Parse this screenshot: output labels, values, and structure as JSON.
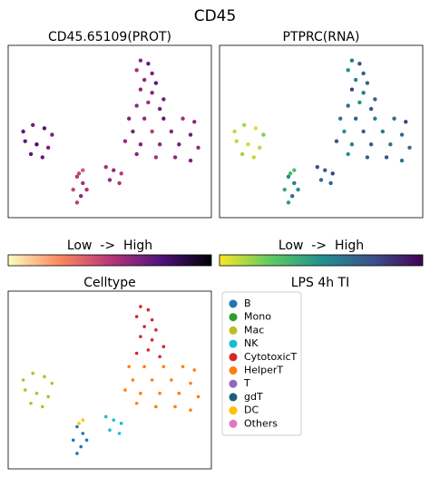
{
  "title": "CD45",
  "chart_data": [
    {
      "type": "scatter",
      "title": "CD45.65109(PROT)",
      "colormap": "magma_r",
      "colorbar_label": "Low  ->  High",
      "clim": [
        0,
        1
      ],
      "xlim": [
        0,
        100
      ],
      "ylim": [
        0,
        100
      ],
      "x": [
        66,
        70,
        64,
        72,
        68,
        74,
        66,
        72,
        78,
        70,
        64,
        76,
        60,
        68,
        78,
        88,
        94,
        62,
        72,
        82,
        92,
        58,
        66,
        76,
        86,
        96,
        64,
        74,
        84,
        92,
        5,
        10,
        16,
        20,
        6,
        12,
        18,
        9,
        15,
        33,
        36,
        31,
        35,
        38,
        33,
        48,
        52,
        56,
        50,
        55,
        36,
        34
      ],
      "y": [
        94,
        92,
        88,
        86,
        82,
        80,
        76,
        74,
        70,
        68,
        66,
        64,
        58,
        58,
        58,
        58,
        56,
        50,
        50,
        50,
        48,
        44,
        42,
        42,
        42,
        40,
        36,
        34,
        34,
        32,
        50,
        54,
        52,
        48,
        44,
        42,
        40,
        36,
        34,
        22,
        18,
        14,
        10,
        14,
        6,
        28,
        26,
        24,
        20,
        18,
        26,
        24
      ],
      "values": [
        0.6,
        0.7,
        0.55,
        0.65,
        0.6,
        0.72,
        0.58,
        0.62,
        0.68,
        0.55,
        0.6,
        0.66,
        0.62,
        0.58,
        0.7,
        0.55,
        0.6,
        0.65,
        0.5,
        0.62,
        0.68,
        0.57,
        0.63,
        0.6,
        0.66,
        0.58,
        0.62,
        0.55,
        0.6,
        0.64,
        0.72,
        0.68,
        0.75,
        0.65,
        0.7,
        0.78,
        0.66,
        0.72,
        0.7,
        0.5,
        0.55,
        0.45,
        0.6,
        0.52,
        0.48,
        0.55,
        0.58,
        0.5,
        0.6,
        0.52,
        0.4,
        0.45
      ]
    },
    {
      "type": "scatter",
      "title": "PTPRC(RNA)",
      "colormap": "viridis_r",
      "colorbar_label": "Low  ->  High",
      "clim": [
        0,
        1
      ],
      "xlim": [
        0,
        100
      ],
      "ylim": [
        0,
        100
      ],
      "x": [
        66,
        70,
        64,
        72,
        68,
        74,
        66,
        72,
        78,
        70,
        64,
        76,
        60,
        68,
        78,
        88,
        94,
        62,
        72,
        82,
        92,
        58,
        66,
        76,
        86,
        96,
        64,
        74,
        84,
        92,
        5,
        10,
        16,
        20,
        6,
        12,
        18,
        9,
        15,
        33,
        36,
        31,
        35,
        38,
        33,
        48,
        52,
        56,
        50,
        55,
        36,
        34
      ],
      "y": [
        94,
        92,
        88,
        86,
        82,
        80,
        76,
        74,
        70,
        68,
        66,
        64,
        58,
        58,
        58,
        58,
        56,
        50,
        50,
        50,
        48,
        44,
        42,
        42,
        42,
        40,
        36,
        34,
        34,
        32,
        50,
        54,
        52,
        48,
        44,
        42,
        40,
        36,
        34,
        22,
        18,
        14,
        10,
        14,
        6,
        28,
        26,
        24,
        20,
        18,
        26,
        24
      ],
      "values": [
        0.6,
        0.75,
        0.5,
        0.7,
        0.55,
        0.65,
        0.8,
        0.6,
        0.7,
        0.5,
        0.65,
        0.75,
        0.6,
        0.7,
        0.55,
        0.65,
        0.8,
        0.5,
        0.7,
        0.6,
        0.65,
        0.75,
        0.55,
        0.7,
        0.6,
        0.65,
        0.5,
        0.7,
        0.75,
        0.6,
        0.1,
        0.15,
        0.05,
        0.2,
        0.1,
        0.08,
        0.12,
        0.15,
        0.1,
        0.55,
        0.6,
        0.4,
        0.65,
        0.5,
        0.45,
        0.75,
        0.7,
        0.8,
        0.65,
        0.7,
        0.3,
        0.35
      ]
    },
    {
      "type": "scatter",
      "title": "Celltype",
      "legend_title": "LPS 4h TI",
      "legend": "outside right",
      "xlim": [
        0,
        100
      ],
      "ylim": [
        0,
        100
      ],
      "series": [
        {
          "name": "B",
          "color": "#1f77b4",
          "x": [
            33,
            36,
            31,
            35,
            38,
            33
          ],
          "y": [
            22,
            18,
            14,
            10,
            14,
            6
          ]
        },
        {
          "name": "Mono",
          "color": "#2ca02c",
          "x": [],
          "y": []
        },
        {
          "name": "Mac",
          "color": "#bcbd22",
          "x": [
            5,
            10,
            16,
            20,
            6,
            12,
            18,
            9,
            15
          ],
          "y": [
            50,
            54,
            52,
            48,
            44,
            42,
            40,
            36,
            34
          ]
        },
        {
          "name": "NK",
          "color": "#17becf",
          "x": [
            48,
            52,
            56,
            50,
            55
          ],
          "y": [
            28,
            26,
            24,
            20,
            18
          ]
        },
        {
          "name": "CytotoxicT",
          "color": "#d62728",
          "x": [
            66,
            70,
            64,
            72,
            68,
            74,
            66,
            72,
            78,
            70,
            64,
            76
          ],
          "y": [
            94,
            92,
            88,
            86,
            82,
            80,
            76,
            74,
            70,
            68,
            66,
            64
          ]
        },
        {
          "name": "HelperT",
          "color": "#ff7f0e",
          "x": [
            60,
            68,
            78,
            88,
            94,
            62,
            72,
            82,
            92,
            58,
            66,
            76,
            86,
            96,
            64,
            74,
            84,
            92
          ],
          "y": [
            58,
            58,
            58,
            58,
            56,
            50,
            50,
            50,
            48,
            44,
            42,
            42,
            42,
            40,
            36,
            34,
            34,
            32
          ]
        },
        {
          "name": "T",
          "color": "#9467bd",
          "x": [],
          "y": []
        },
        {
          "name": "gdT",
          "color": "#17607a",
          "x": [],
          "y": []
        },
        {
          "name": "DC",
          "color": "#ffbf00",
          "x": [
            36,
            34
          ],
          "y": [
            26,
            24
          ]
        },
        {
          "name": "Others",
          "color": "#e377c2",
          "x": [],
          "y": []
        }
      ]
    }
  ]
}
